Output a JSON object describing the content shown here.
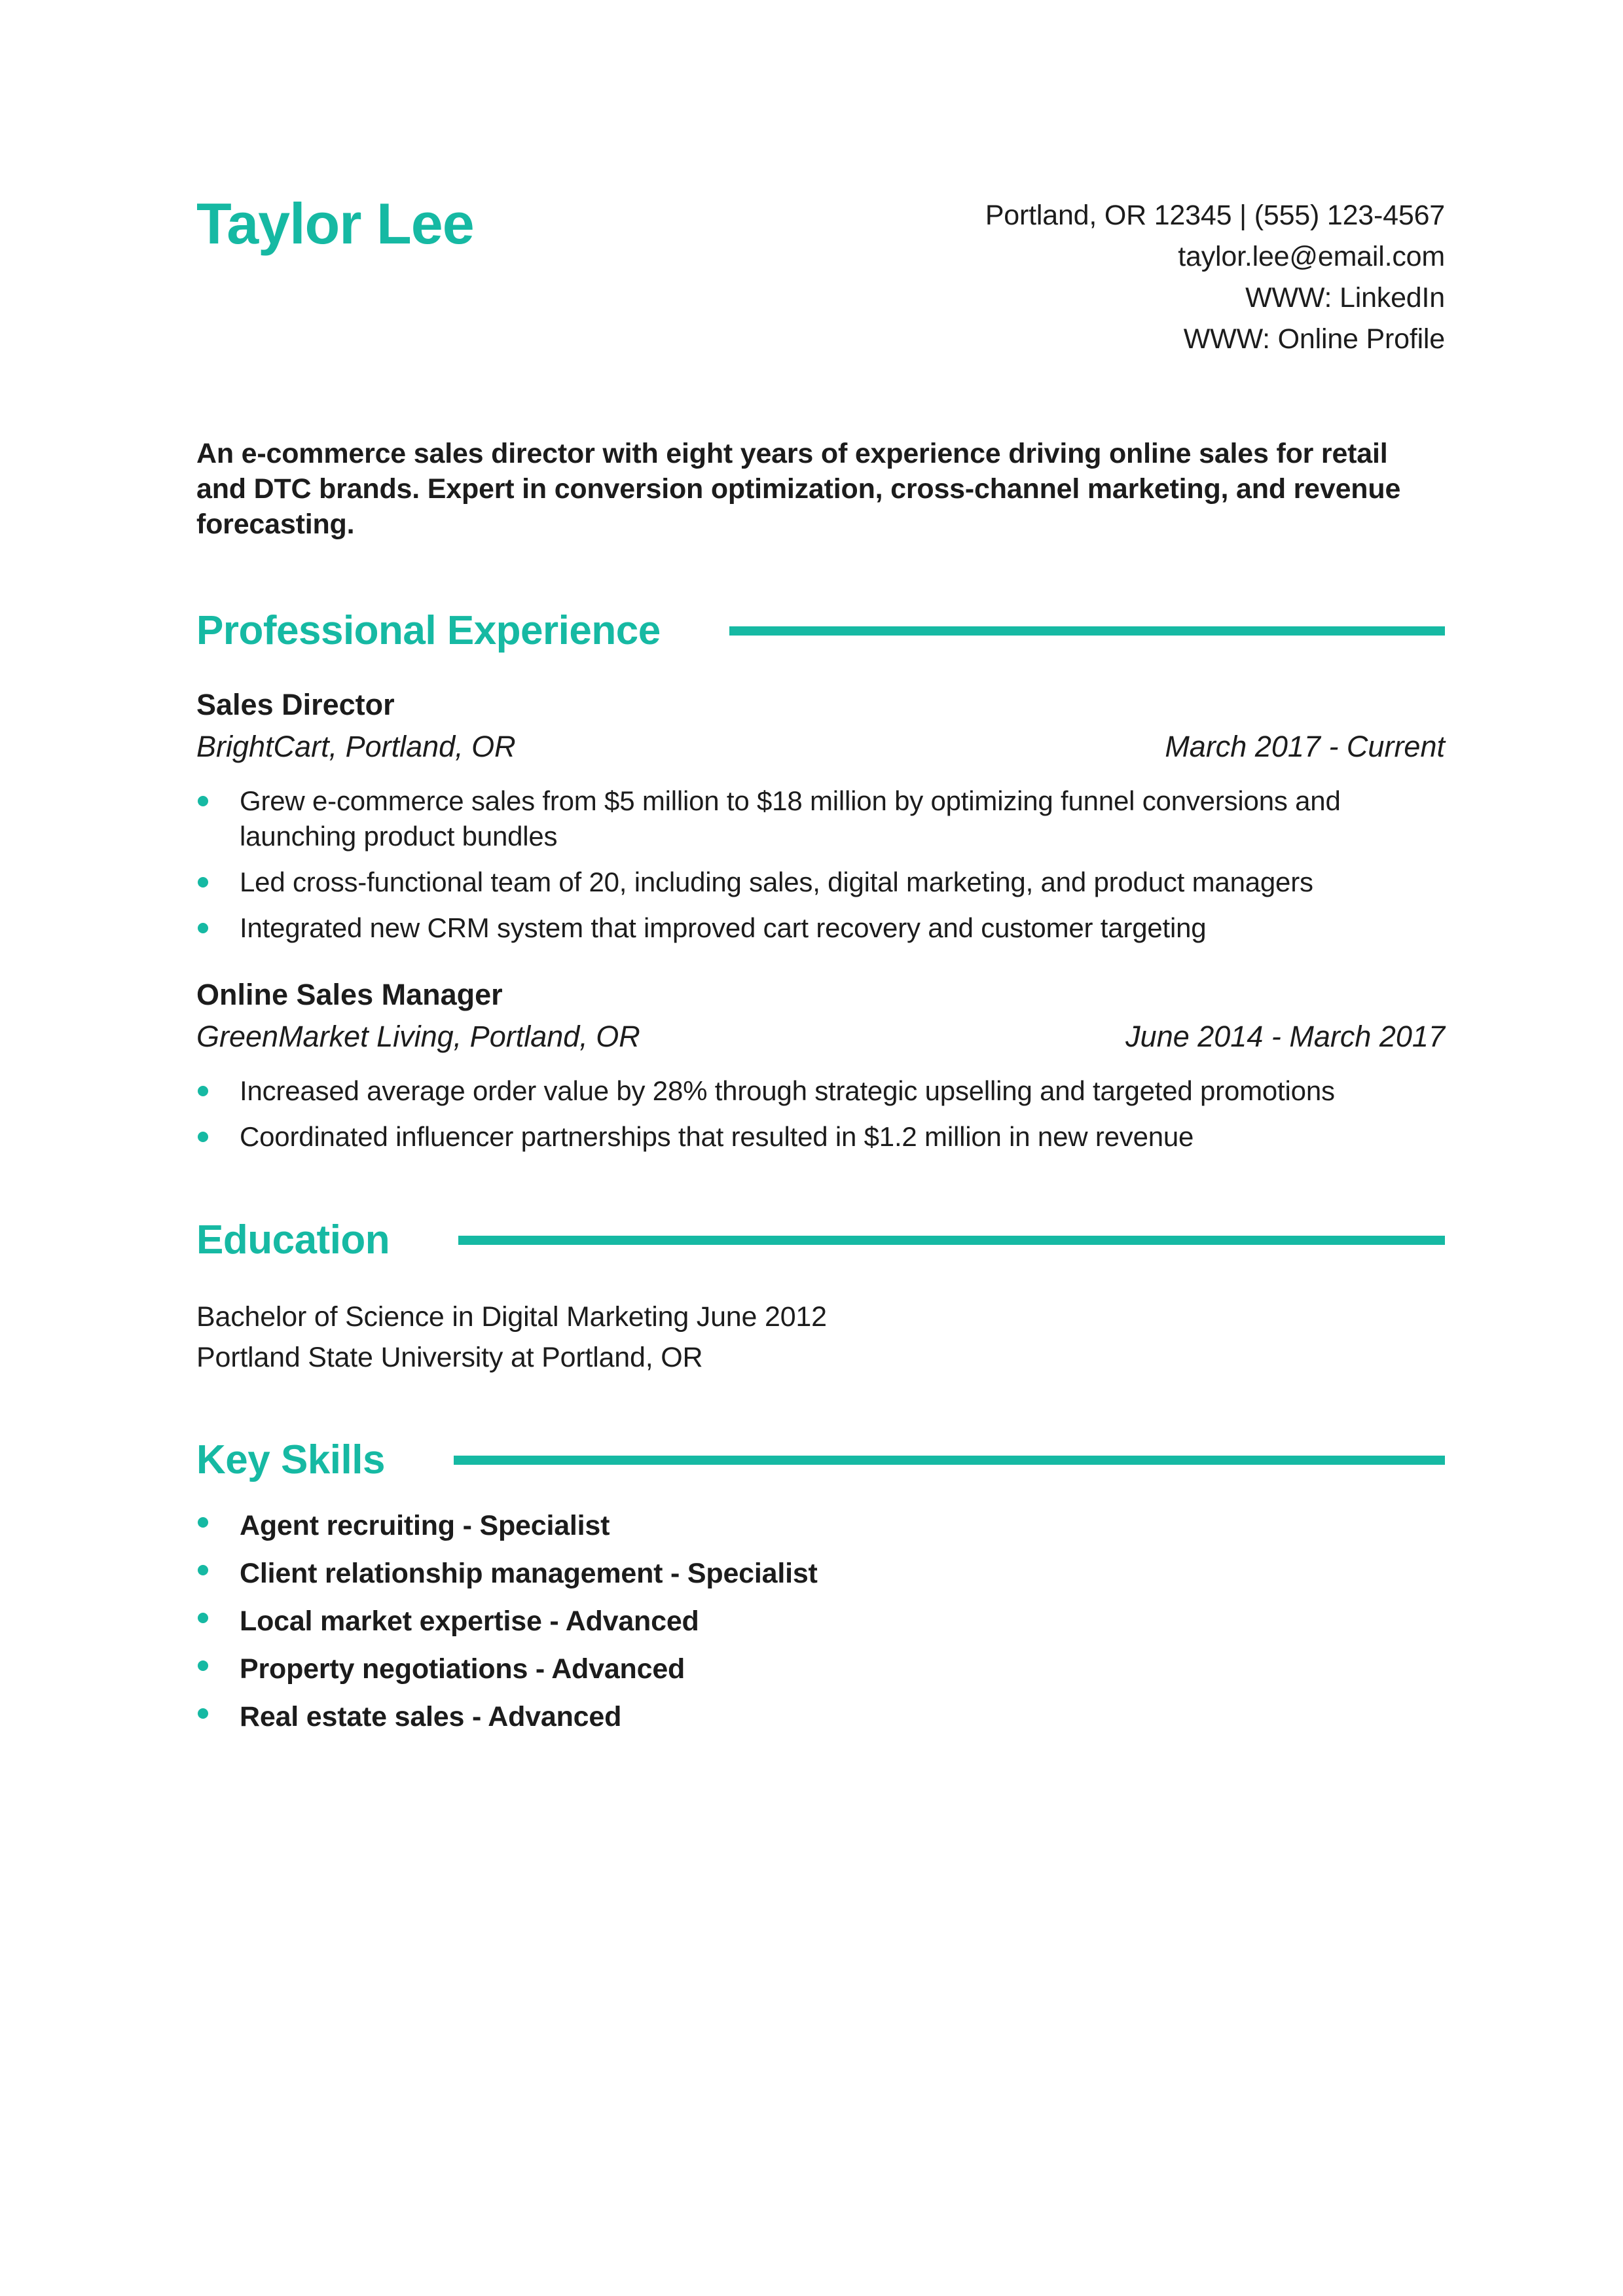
{
  "colors": {
    "accent": "#16b9a3",
    "text": "#1c1c1c",
    "background": "#ffffff"
  },
  "header": {
    "name": "Taylor Lee",
    "contact": {
      "location_phone": "Portland, OR 12345 | (555) 123-4567",
      "email": "taylor.lee@email.com",
      "linkedin": "WWW: LinkedIn",
      "website": "WWW: Online Profile"
    }
  },
  "summary": "An e-commerce sales director with eight years of experience driving online sales for retail and DTC brands. Expert in conversion optimization, cross-channel marketing, and revenue forecasting.",
  "experience": {
    "title": "Professional Experience",
    "jobs": [
      {
        "title": "Sales Director",
        "company": "BrightCart, Portland, OR",
        "dates": "March 2017 - Current",
        "bullets": [
          "Grew e-commerce sales from $5 million to $18 million by optimizing funnel conversions and launching product bundles",
          "Led cross-functional team of 20, including sales, digital marketing, and product managers",
          "Integrated new CRM system that improved cart recovery and customer targeting"
        ]
      },
      {
        "title": "Online Sales Manager",
        "company": "GreenMarket Living, Portland, OR",
        "dates": "June 2014 - March 2017",
        "bullets": [
          "Increased average order value by 28% through strategic upselling and targeted promotions",
          "Coordinated influencer partnerships that resulted in $1.2 million in new revenue"
        ]
      }
    ]
  },
  "education": {
    "title": "Education",
    "degree": "Bachelor of Science in Digital Marketing June 2012",
    "school": "Portland State University at Portland, OR"
  },
  "skills": {
    "title": "Key Skills",
    "items": [
      "Agent recruiting - Specialist",
      "Client relationship management - Specialist",
      "Local market expertise - Advanced",
      "Property negotiations - Advanced",
      "Real estate sales - Advanced"
    ]
  }
}
